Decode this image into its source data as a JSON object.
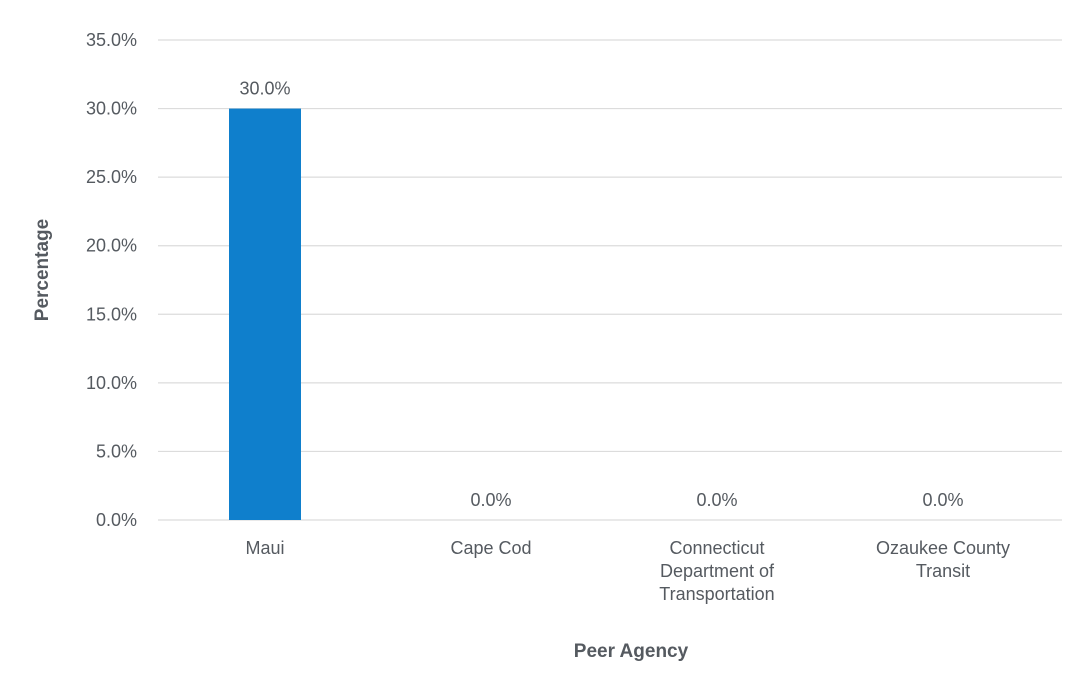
{
  "chart_data": {
    "type": "bar",
    "categories": [
      "Maui",
      "Cape Cod",
      "Connecticut Department of Transportation",
      "Ozaukee County Transit"
    ],
    "category_label_lines": [
      [
        "Maui"
      ],
      [
        "Cape Cod"
      ],
      [
        "Connecticut",
        "Department of",
        "Transportation"
      ],
      [
        "Ozaukee County",
        "Transit"
      ]
    ],
    "values": [
      30.0,
      0.0,
      0.0,
      0.0
    ],
    "data_labels": [
      "30.0%",
      "0.0%",
      "0.0%",
      "0.0%"
    ],
    "title": "",
    "xlabel": "Peer Agency",
    "ylabel": "Percentage",
    "ylim": [
      0,
      35
    ],
    "y_ticks": [
      0,
      5,
      10,
      15,
      20,
      25,
      30,
      35
    ],
    "y_tick_labels": [
      "0.0%",
      "5.0%",
      "10.0%",
      "15.0%",
      "20.0%",
      "25.0%",
      "30.0%",
      "35.0%"
    ],
    "grid": true,
    "legend": "none",
    "bar_color": "#0f7fcc"
  }
}
